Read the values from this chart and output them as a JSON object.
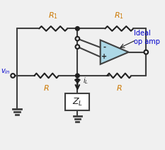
{
  "bg_color": "#f0f0f0",
  "line_color": "#404040",
  "line_width": 1.5,
  "resistor_color": "#202020",
  "node_color": "#202020",
  "opamp_fill": "#add8e6",
  "opamp_edge": "#404040",
  "label_color_orange": "#cc7700",
  "label_color_blue": "#0000cc",
  "label_color_black": "#202020",
  "zl_fill": "#ffffff",
  "zl_edge": "#404040",
  "arrow_color": "#202020"
}
